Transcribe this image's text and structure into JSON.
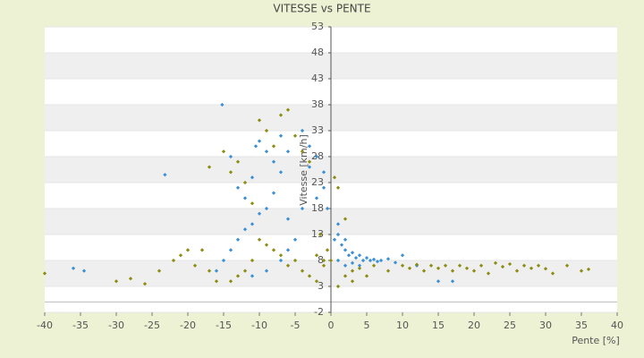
{
  "chart_data": {
    "type": "scatter",
    "title": "VITESSE vs PENTE",
    "x_label": "Pente [%]",
    "y_label": "Vitesse [km/h]",
    "xlim": [
      -40,
      40
    ],
    "xticks": [
      -40,
      -35,
      -30,
      -25,
      -20,
      -15,
      -10,
      -5,
      0,
      5,
      10,
      15,
      20,
      25,
      30,
      35,
      40
    ],
    "ylim": [
      -2,
      53
    ],
    "yticks": [
      -2,
      3,
      8,
      13,
      18,
      23,
      28,
      33,
      38,
      43,
      48,
      53
    ],
    "grid": "bands",
    "series": [
      {
        "color": "#3a8fd8",
        "x": [
          -15.2,
          -23.2,
          -36,
          -34.5,
          -10,
          -10.5,
          -9,
          -8,
          -7,
          -8,
          -9,
          -10,
          -11,
          -12,
          -13,
          -14,
          -15,
          -16,
          -4,
          -3,
          -2,
          -1,
          -2,
          -4,
          -6,
          -5,
          -6,
          -7,
          -9,
          -11,
          1,
          1.5,
          2,
          2.5,
          3,
          3.5,
          4,
          4.5,
          5,
          5.5,
          6,
          6.5,
          7,
          8,
          9,
          10,
          12,
          15,
          17,
          1,
          2,
          3,
          4,
          0.5,
          1,
          2,
          -0.5,
          -1,
          -3,
          -12,
          -13,
          -11,
          -14,
          -6,
          -7
        ],
        "values": [
          38,
          24.5,
          6.5,
          6,
          31,
          30,
          29,
          27,
          25,
          21,
          18,
          17,
          15,
          14,
          12,
          10,
          8,
          6,
          33,
          30,
          28,
          25,
          20,
          18,
          16,
          12,
          10,
          8,
          6,
          5,
          13,
          11,
          10,
          9,
          9.5,
          8.5,
          9,
          8,
          8.5,
          8,
          8.2,
          7.8,
          8,
          8.3,
          7.6,
          9,
          7,
          4,
          4,
          8,
          7,
          7.5,
          7,
          12,
          15,
          12,
          18,
          22,
          26,
          20,
          22,
          24,
          28,
          29,
          32
        ]
      },
      {
        "color": "#8c8c10",
        "x": [
          -40,
          -30,
          -28,
          -26,
          -24,
          -22,
          -21,
          -20,
          -19,
          -18,
          -17,
          -16,
          -15,
          -17,
          -14,
          -13,
          -12,
          -11,
          -10,
          -9,
          -8,
          -7,
          -6,
          -5,
          -4,
          -3,
          -2,
          -1,
          -5,
          -6,
          -7,
          -8,
          -9,
          -10,
          -11,
          -12,
          -13,
          -14,
          -4,
          -3,
          -2,
          -1,
          0,
          0.5,
          1,
          1,
          2,
          3,
          4,
          5,
          6,
          8,
          10,
          11,
          12,
          13,
          14,
          15,
          16,
          17,
          18,
          19,
          20,
          21,
          22,
          23,
          24,
          25,
          26,
          27,
          28,
          29,
          30,
          31,
          33,
          35,
          36,
          -1.5,
          -0.5,
          2,
          3
        ],
        "values": [
          5.5,
          4,
          4.5,
          3.5,
          6,
          8,
          9,
          10,
          7,
          10,
          6,
          4,
          29,
          26,
          25,
          27,
          23,
          19,
          35,
          33,
          30,
          36,
          37,
          32,
          29,
          27,
          9,
          8,
          8,
          7,
          9,
          10,
          11,
          12,
          8,
          6,
          5,
          4,
          6,
          5,
          4,
          7,
          8,
          24,
          22,
          3,
          5,
          6,
          6.5,
          5,
          7,
          6,
          7,
          6.5,
          7.2,
          6,
          7,
          6.5,
          7,
          6,
          7,
          6.5,
          6,
          7,
          5.5,
          7.5,
          6.8,
          7.3,
          6,
          7,
          6.5,
          7,
          6.4,
          5.5,
          7,
          6,
          6.3,
          13,
          10,
          16,
          4
        ]
      }
    ]
  }
}
